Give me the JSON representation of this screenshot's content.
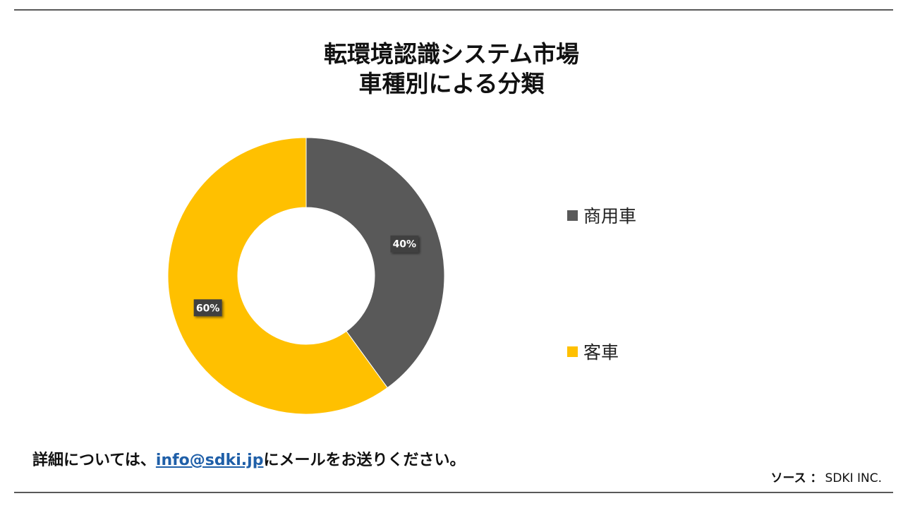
{
  "title_line1": "転環境認識システム市場",
  "title_line2": "車種別による分類",
  "chart_data": {
    "type": "pie",
    "donut": true,
    "series": [
      {
        "name": "商用車",
        "value": 40,
        "label": "40%",
        "color": "#595959"
      },
      {
        "name": "客車",
        "value": 60,
        "label": "60%",
        "color": "#FFC000"
      }
    ],
    "legend_position": "right"
  },
  "footer": {
    "prefix": "詳細については、",
    "email": "info@sdki.jp",
    "suffix": "にメールをお送りください。"
  },
  "source": {
    "label": "ソース ：",
    "value": "SDKI INC."
  }
}
